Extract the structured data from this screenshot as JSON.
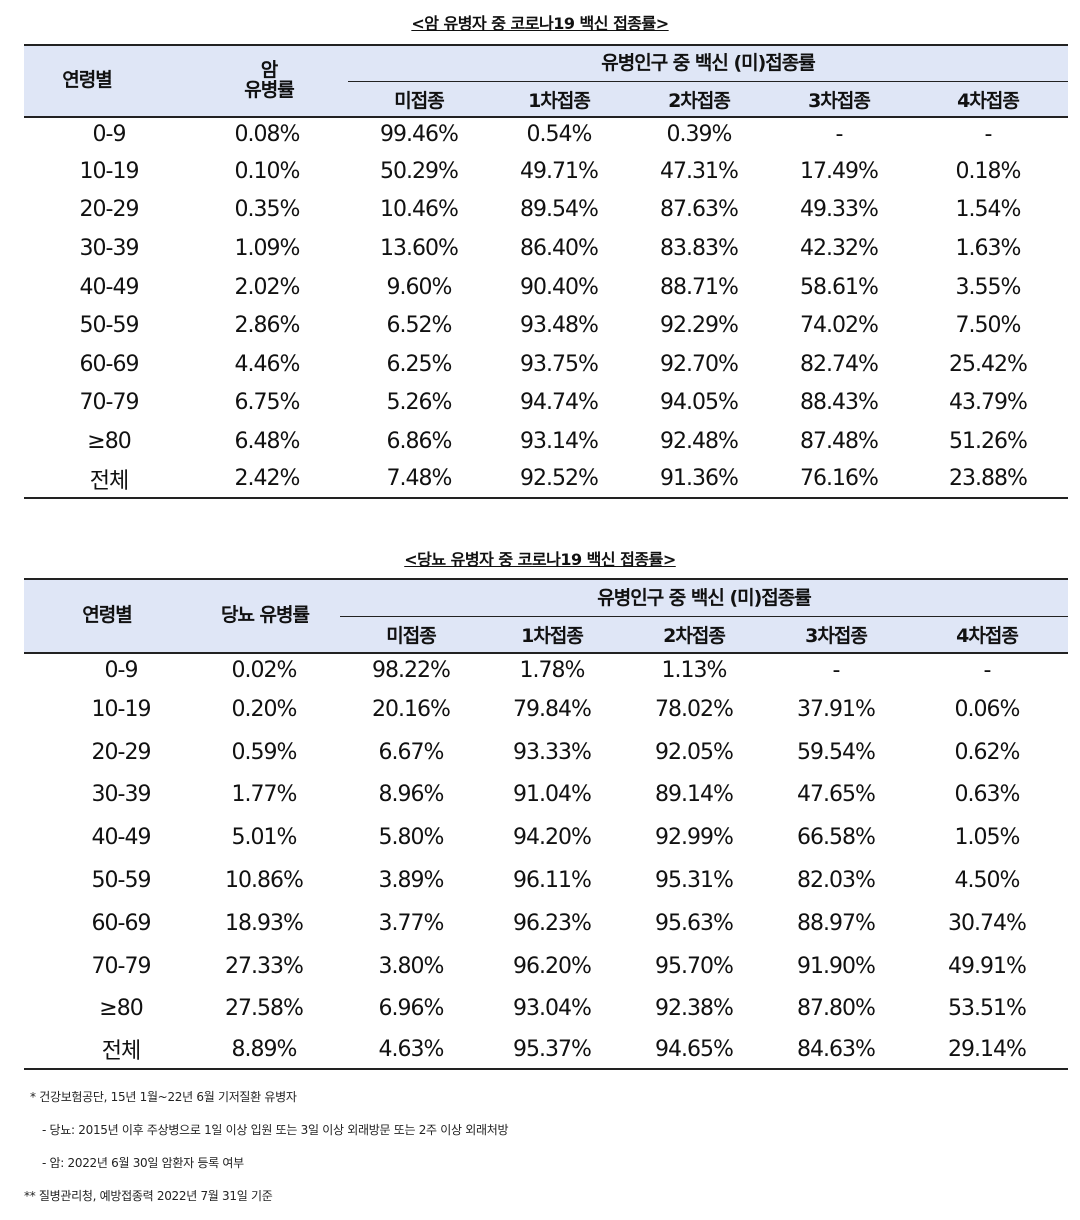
{
  "table1": {
    "title": "<암 유병자 중 코로나19 백신 접종률>",
    "header": {
      "age": "연령별",
      "prevalence_line1": "암",
      "prevalence_line2": "유병률",
      "group": "유병인구 중 백신 (미)접종률",
      "subs": [
        "미접종",
        "1차접종",
        "2차접종",
        "3차접종",
        "4차접종"
      ]
    },
    "rows": [
      [
        "0-9",
        "0.08%",
        "99.46%",
        "0.54%",
        "0.39%",
        "-",
        "-"
      ],
      [
        "10-19",
        "0.10%",
        "50.29%",
        "49.71%",
        "47.31%",
        "17.49%",
        "0.18%"
      ],
      [
        "20-29",
        "0.35%",
        "10.46%",
        "89.54%",
        "87.63%",
        "49.33%",
        "1.54%"
      ],
      [
        "30-39",
        "1.09%",
        "13.60%",
        "86.40%",
        "83.83%",
        "42.32%",
        "1.63%"
      ],
      [
        "40-49",
        "2.02%",
        "9.60%",
        "90.40%",
        "88.71%",
        "58.61%",
        "3.55%"
      ],
      [
        "50-59",
        "2.86%",
        "6.52%",
        "93.48%",
        "92.29%",
        "74.02%",
        "7.50%"
      ],
      [
        "60-69",
        "4.46%",
        "6.25%",
        "93.75%",
        "92.70%",
        "82.74%",
        "25.42%"
      ],
      [
        "70-79",
        "6.75%",
        "5.26%",
        "94.74%",
        "94.05%",
        "88.43%",
        "43.79%"
      ],
      [
        "≥80",
        "6.48%",
        "6.86%",
        "93.14%",
        "92.48%",
        "87.48%",
        "51.26%"
      ],
      [
        "전체",
        "2.42%",
        "7.48%",
        "92.52%",
        "91.36%",
        "76.16%",
        "23.88%"
      ]
    ]
  },
  "table2": {
    "title": "<당뇨 유병자 중 코로나19 백신 접종률>",
    "header": {
      "age": "연령별",
      "prevalence": "당뇨 유병률",
      "group": "유병인구 중 백신 (미)접종률",
      "subs": [
        "미접종",
        "1차접종",
        "2차접종",
        "3차접종",
        "4차접종"
      ]
    },
    "rows": [
      [
        "0-9",
        "0.02%",
        "98.22%",
        "1.78%",
        "1.13%",
        "-",
        "-"
      ],
      [
        "10-19",
        "0.20%",
        "20.16%",
        "79.84%",
        "78.02%",
        "37.91%",
        "0.06%"
      ],
      [
        "20-29",
        "0.59%",
        "6.67%",
        "93.33%",
        "92.05%",
        "59.54%",
        "0.62%"
      ],
      [
        "30-39",
        "1.77%",
        "8.96%",
        "91.04%",
        "89.14%",
        "47.65%",
        "0.63%"
      ],
      [
        "40-49",
        "5.01%",
        "5.80%",
        "94.20%",
        "92.99%",
        "66.58%",
        "1.05%"
      ],
      [
        "50-59",
        "10.86%",
        "3.89%",
        "96.11%",
        "95.31%",
        "82.03%",
        "4.50%"
      ],
      [
        "60-69",
        "18.93%",
        "3.77%",
        "96.23%",
        "95.63%",
        "88.97%",
        "30.74%"
      ],
      [
        "70-79",
        "27.33%",
        "3.80%",
        "96.20%",
        "95.70%",
        "91.90%",
        "49.91%"
      ],
      [
        "≥80",
        "27.58%",
        "6.96%",
        "93.04%",
        "92.38%",
        "87.80%",
        "53.51%"
      ],
      [
        "전체",
        "8.89%",
        "4.63%",
        "95.37%",
        "94.65%",
        "84.63%",
        "29.14%"
      ]
    ]
  },
  "notes": [
    "* 건강보험공단, 15년 1월~22년 6월 기저질환 유병자",
    "- 당뇨: 2015년 이후 주상병으로 1일 이상 입원 또는 3일 이상 외래방문 또는 2주 이상 외래처방",
    "- 암: 2022년 6월 30일 암환자 등록 여부",
    "** 질병관리청, 예방접종력 2022년 7월 31일 기준"
  ]
}
